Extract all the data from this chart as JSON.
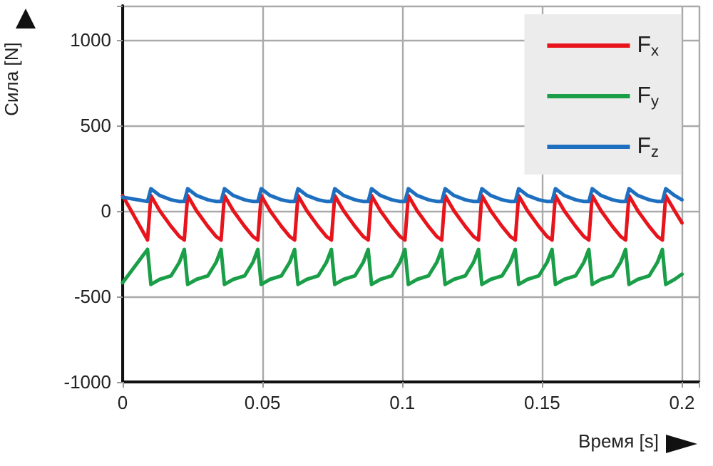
{
  "chart_data": {
    "type": "line",
    "xlabel": "Время [s]",
    "ylabel": "Сила [N]",
    "x": [
      0,
      0.0089,
      0.0101,
      0.0133,
      0.0173,
      0.0203,
      0.02205,
      0.02325,
      0.02645,
      0.03045,
      0.03345,
      0.0352,
      0.0364,
      0.0396,
      0.0436,
      0.0466,
      0.04835,
      0.04955,
      0.05275,
      0.05675,
      0.05975,
      0.0615,
      0.0627,
      0.0659,
      0.0699,
      0.0729,
      0.07465,
      0.07585,
      0.07905,
      0.08305,
      0.08605,
      0.0878,
      0.089,
      0.0922,
      0.0962,
      0.0992,
      0.10095,
      0.10215,
      0.10535,
      0.10935,
      0.11235,
      0.1141,
      0.1153,
      0.1185,
      0.1225,
      0.1255,
      0.12725,
      0.12845,
      0.13165,
      0.13565,
      0.13865,
      0.1404,
      0.1416,
      0.1448,
      0.1488,
      0.1518,
      0.15355,
      0.15475,
      0.15795,
      0.16195,
      0.16495,
      0.1667,
      0.1679,
      0.1711,
      0.1751,
      0.1781,
      0.17985,
      0.18105,
      0.18425,
      0.18825,
      0.19125,
      0.193,
      0.1942,
      0.1974,
      0.2
    ],
    "series": [
      {
        "name": "F$_{x}$",
        "color": "#e8141c",
        "values": [
          90,
          -170,
          90,
          0,
          -90,
          -150,
          -170,
          90,
          0,
          -90,
          -150,
          -170,
          90,
          0,
          -90,
          -150,
          -170,
          90,
          0,
          -90,
          -150,
          -170,
          90,
          0,
          -90,
          -150,
          -170,
          90,
          0,
          -90,
          -150,
          -170,
          90,
          0,
          -90,
          -150,
          -170,
          90,
          0,
          -90,
          -150,
          -170,
          90,
          0,
          -90,
          -150,
          -170,
          90,
          0,
          -90,
          -150,
          -170,
          90,
          0,
          -90,
          -150,
          -170,
          90,
          0,
          -90,
          -150,
          -170,
          90,
          0,
          -90,
          -150,
          -170,
          90,
          0,
          -90,
          -150,
          -170,
          90,
          0,
          -70
        ]
      },
      {
        "name": "F$_{y}$",
        "color": "#1a9e48",
        "values": [
          -420,
          -225,
          -430,
          -400,
          -380,
          -300,
          -225,
          -430,
          -400,
          -380,
          -300,
          -225,
          -430,
          -400,
          -380,
          -300,
          -225,
          -430,
          -400,
          -380,
          -300,
          -225,
          -430,
          -400,
          -380,
          -300,
          -225,
          -430,
          -400,
          -380,
          -300,
          -225,
          -430,
          -400,
          -380,
          -300,
          -225,
          -430,
          -400,
          -380,
          -300,
          -225,
          -430,
          -400,
          -380,
          -300,
          -225,
          -430,
          -400,
          -380,
          -300,
          -225,
          -430,
          -400,
          -380,
          -300,
          -225,
          -430,
          -400,
          -380,
          -300,
          -225,
          -430,
          -400,
          -380,
          -300,
          -225,
          -430,
          -400,
          -380,
          -300,
          -225,
          -430,
          -400,
          -370
        ]
      },
      {
        "name": "F$_{z}$",
        "color": "#1f6fc0",
        "values": [
          80,
          55,
          130,
          90,
          65,
          55,
          55,
          130,
          90,
          65,
          55,
          55,
          130,
          90,
          65,
          55,
          55,
          130,
          90,
          65,
          55,
          55,
          130,
          90,
          65,
          55,
          55,
          130,
          90,
          65,
          55,
          55,
          130,
          90,
          65,
          55,
          55,
          130,
          90,
          65,
          55,
          55,
          130,
          90,
          65,
          55,
          55,
          130,
          90,
          65,
          55,
          55,
          130,
          90,
          65,
          55,
          55,
          130,
          90,
          65,
          55,
          55,
          130,
          90,
          65,
          55,
          55,
          130,
          90,
          65,
          55,
          55,
          130,
          90,
          65
        ]
      }
    ],
    "xlim": [
      0,
      0.206
    ],
    "xticks": [
      0,
      0.05,
      0.1,
      0.15,
      0.2
    ],
    "ylim": [
      -1000,
      1200
    ],
    "yticks": [
      -1000,
      -500,
      0,
      500,
      1000
    ],
    "grid": true,
    "legend": "top right",
    "marker": "none",
    "line_style": "solid"
  }
}
